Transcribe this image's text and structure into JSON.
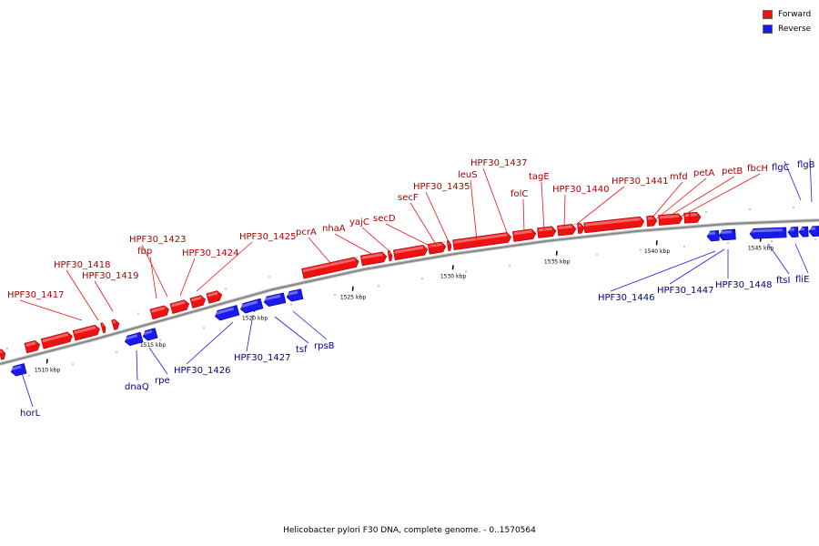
{
  "colors": {
    "forward": "#ee1111",
    "reverse": "#1a1aee",
    "backbone": "#888888",
    "forward_label": "#aa0000",
    "reverse_label": "#00008b"
  },
  "legend": {
    "forward": "Forward",
    "reverse": "Reverse"
  },
  "caption": "Helicobacter pylori F30 DNA, complete genome. - 0..1570564",
  "ticks": [
    "1510 kbp",
    "1515 kbp",
    "1520 kbp",
    "1525 kbp",
    "1530 kbp",
    "1535 kbp",
    "1540 kbp",
    "1545 kbp"
  ],
  "genes": [
    {
      "name": "HPF30_1417",
      "strand": "forward"
    },
    {
      "name": "HPF30_1418",
      "strand": "forward"
    },
    {
      "name": "HPF30_1419",
      "strand": "forward"
    },
    {
      "name": "HPF30_1423",
      "strand": "forward"
    },
    {
      "name": "fbp",
      "strand": "forward"
    },
    {
      "name": "HPF30_1424",
      "strand": "forward"
    },
    {
      "name": "HPF30_1425",
      "strand": "forward"
    },
    {
      "name": "pcrA",
      "strand": "forward"
    },
    {
      "name": "nhaA",
      "strand": "forward"
    },
    {
      "name": "yajC",
      "strand": "forward"
    },
    {
      "name": "secD",
      "strand": "forward"
    },
    {
      "name": "secF",
      "strand": "forward"
    },
    {
      "name": "HPF30_1435",
      "strand": "forward"
    },
    {
      "name": "leuS",
      "strand": "forward"
    },
    {
      "name": "HPF30_1437",
      "strand": "forward"
    },
    {
      "name": "folC",
      "strand": "forward"
    },
    {
      "name": "tagE",
      "strand": "forward"
    },
    {
      "name": "HPF30_1440",
      "strand": "forward"
    },
    {
      "name": "HPF30_1441",
      "strand": "forward"
    },
    {
      "name": "mfd",
      "strand": "forward"
    },
    {
      "name": "petA",
      "strand": "forward"
    },
    {
      "name": "petB",
      "strand": "forward"
    },
    {
      "name": "fbcH",
      "strand": "forward"
    },
    {
      "name": "horL",
      "strand": "reverse"
    },
    {
      "name": "dnaQ",
      "strand": "reverse"
    },
    {
      "name": "rpe",
      "strand": "reverse"
    },
    {
      "name": "HPF30_1426",
      "strand": "reverse"
    },
    {
      "name": "HPF30_1427",
      "strand": "reverse"
    },
    {
      "name": "tsf",
      "strand": "reverse"
    },
    {
      "name": "rpsB",
      "strand": "reverse"
    },
    {
      "name": "HPF30_1446",
      "strand": "reverse"
    },
    {
      "name": "HPF30_1447",
      "strand": "reverse"
    },
    {
      "name": "HPF30_1448",
      "strand": "reverse"
    },
    {
      "name": "ftsI",
      "strand": "reverse"
    },
    {
      "name": "fliE",
      "strand": "reverse"
    },
    {
      "name": "flgC",
      "strand": "reverse"
    },
    {
      "name": "flgB",
      "strand": "reverse"
    }
  ]
}
